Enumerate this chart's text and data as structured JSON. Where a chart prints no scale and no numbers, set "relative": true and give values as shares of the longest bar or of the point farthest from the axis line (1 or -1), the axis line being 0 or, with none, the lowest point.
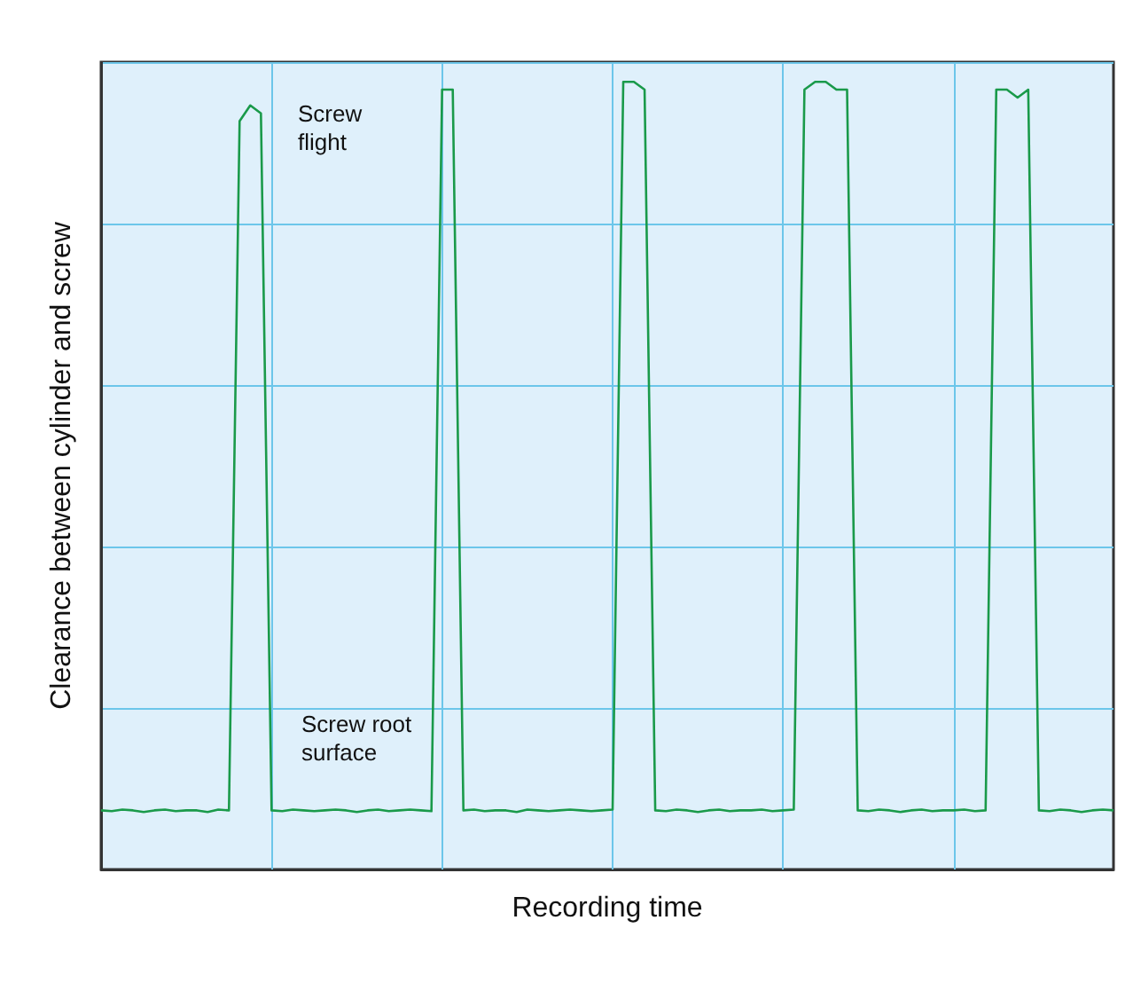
{
  "chart_data": {
    "type": "line",
    "relative": true,
    "xlabel": "Recording time",
    "ylabel": "Clearance between cylinder and screw",
    "categories": [
      null,
      null,
      null,
      null,
      null,
      null,
      null,
      null,
      null,
      null,
      null,
      null,
      null,
      null,
      null,
      null,
      null,
      null,
      null,
      null,
      null,
      null,
      null,
      null,
      null,
      null,
      null,
      null,
      null,
      null,
      null,
      null,
      null,
      null,
      null,
      null,
      null,
      null,
      null,
      null,
      null,
      null,
      null,
      null,
      null,
      null,
      null,
      null,
      null,
      null,
      null,
      null,
      null,
      null,
      null,
      null,
      null,
      null,
      null,
      null,
      null,
      null,
      null,
      null,
      null,
      null,
      null,
      null,
      null,
      null,
      null,
      null,
      null,
      null,
      null,
      null,
      null,
      null,
      null,
      null,
      null,
      null,
      null,
      null,
      null,
      null,
      null,
      null,
      null,
      null,
      null,
      null,
      null,
      null,
      null,
      null
    ],
    "series": [
      {
        "color": "#1a9a4a",
        "values": [
          0.075,
          0.074,
          0.076,
          0.075,
          0.073,
          0.075,
          0.076,
          0.074,
          0.075,
          0.075,
          0.073,
          0.076,
          0.075,
          0.95,
          0.97,
          0.96,
          0.075,
          0.074,
          0.076,
          0.075,
          0.074,
          0.075,
          0.076,
          0.075,
          0.073,
          0.075,
          0.076,
          0.074,
          0.075,
          0.076,
          0.075,
          0.074,
          0.99,
          0.99,
          0.075,
          0.076,
          0.074,
          0.075,
          0.075,
          0.073,
          0.076,
          0.075,
          0.074,
          0.075,
          0.076,
          0.075,
          0.074,
          0.075,
          0.076,
          1.0,
          1.0,
          0.99,
          0.075,
          0.074,
          0.076,
          0.075,
          0.073,
          0.075,
          0.076,
          0.074,
          0.075,
          0.075,
          0.076,
          0.074,
          0.075,
          0.076,
          0.99,
          1.0,
          1.0,
          0.99,
          0.99,
          0.075,
          0.074,
          0.076,
          0.075,
          0.073,
          0.075,
          0.076,
          0.074,
          0.075,
          0.075,
          0.076,
          0.074,
          0.075,
          0.99,
          0.99,
          0.98,
          0.99,
          0.075,
          0.074,
          0.076,
          0.075,
          0.073,
          0.075,
          0.076,
          0.075
        ]
      }
    ],
    "annotations": [
      "Screw flight",
      "Screw root surface"
    ],
    "grid": true,
    "marker": "none",
    "line_style": "solid"
  }
}
